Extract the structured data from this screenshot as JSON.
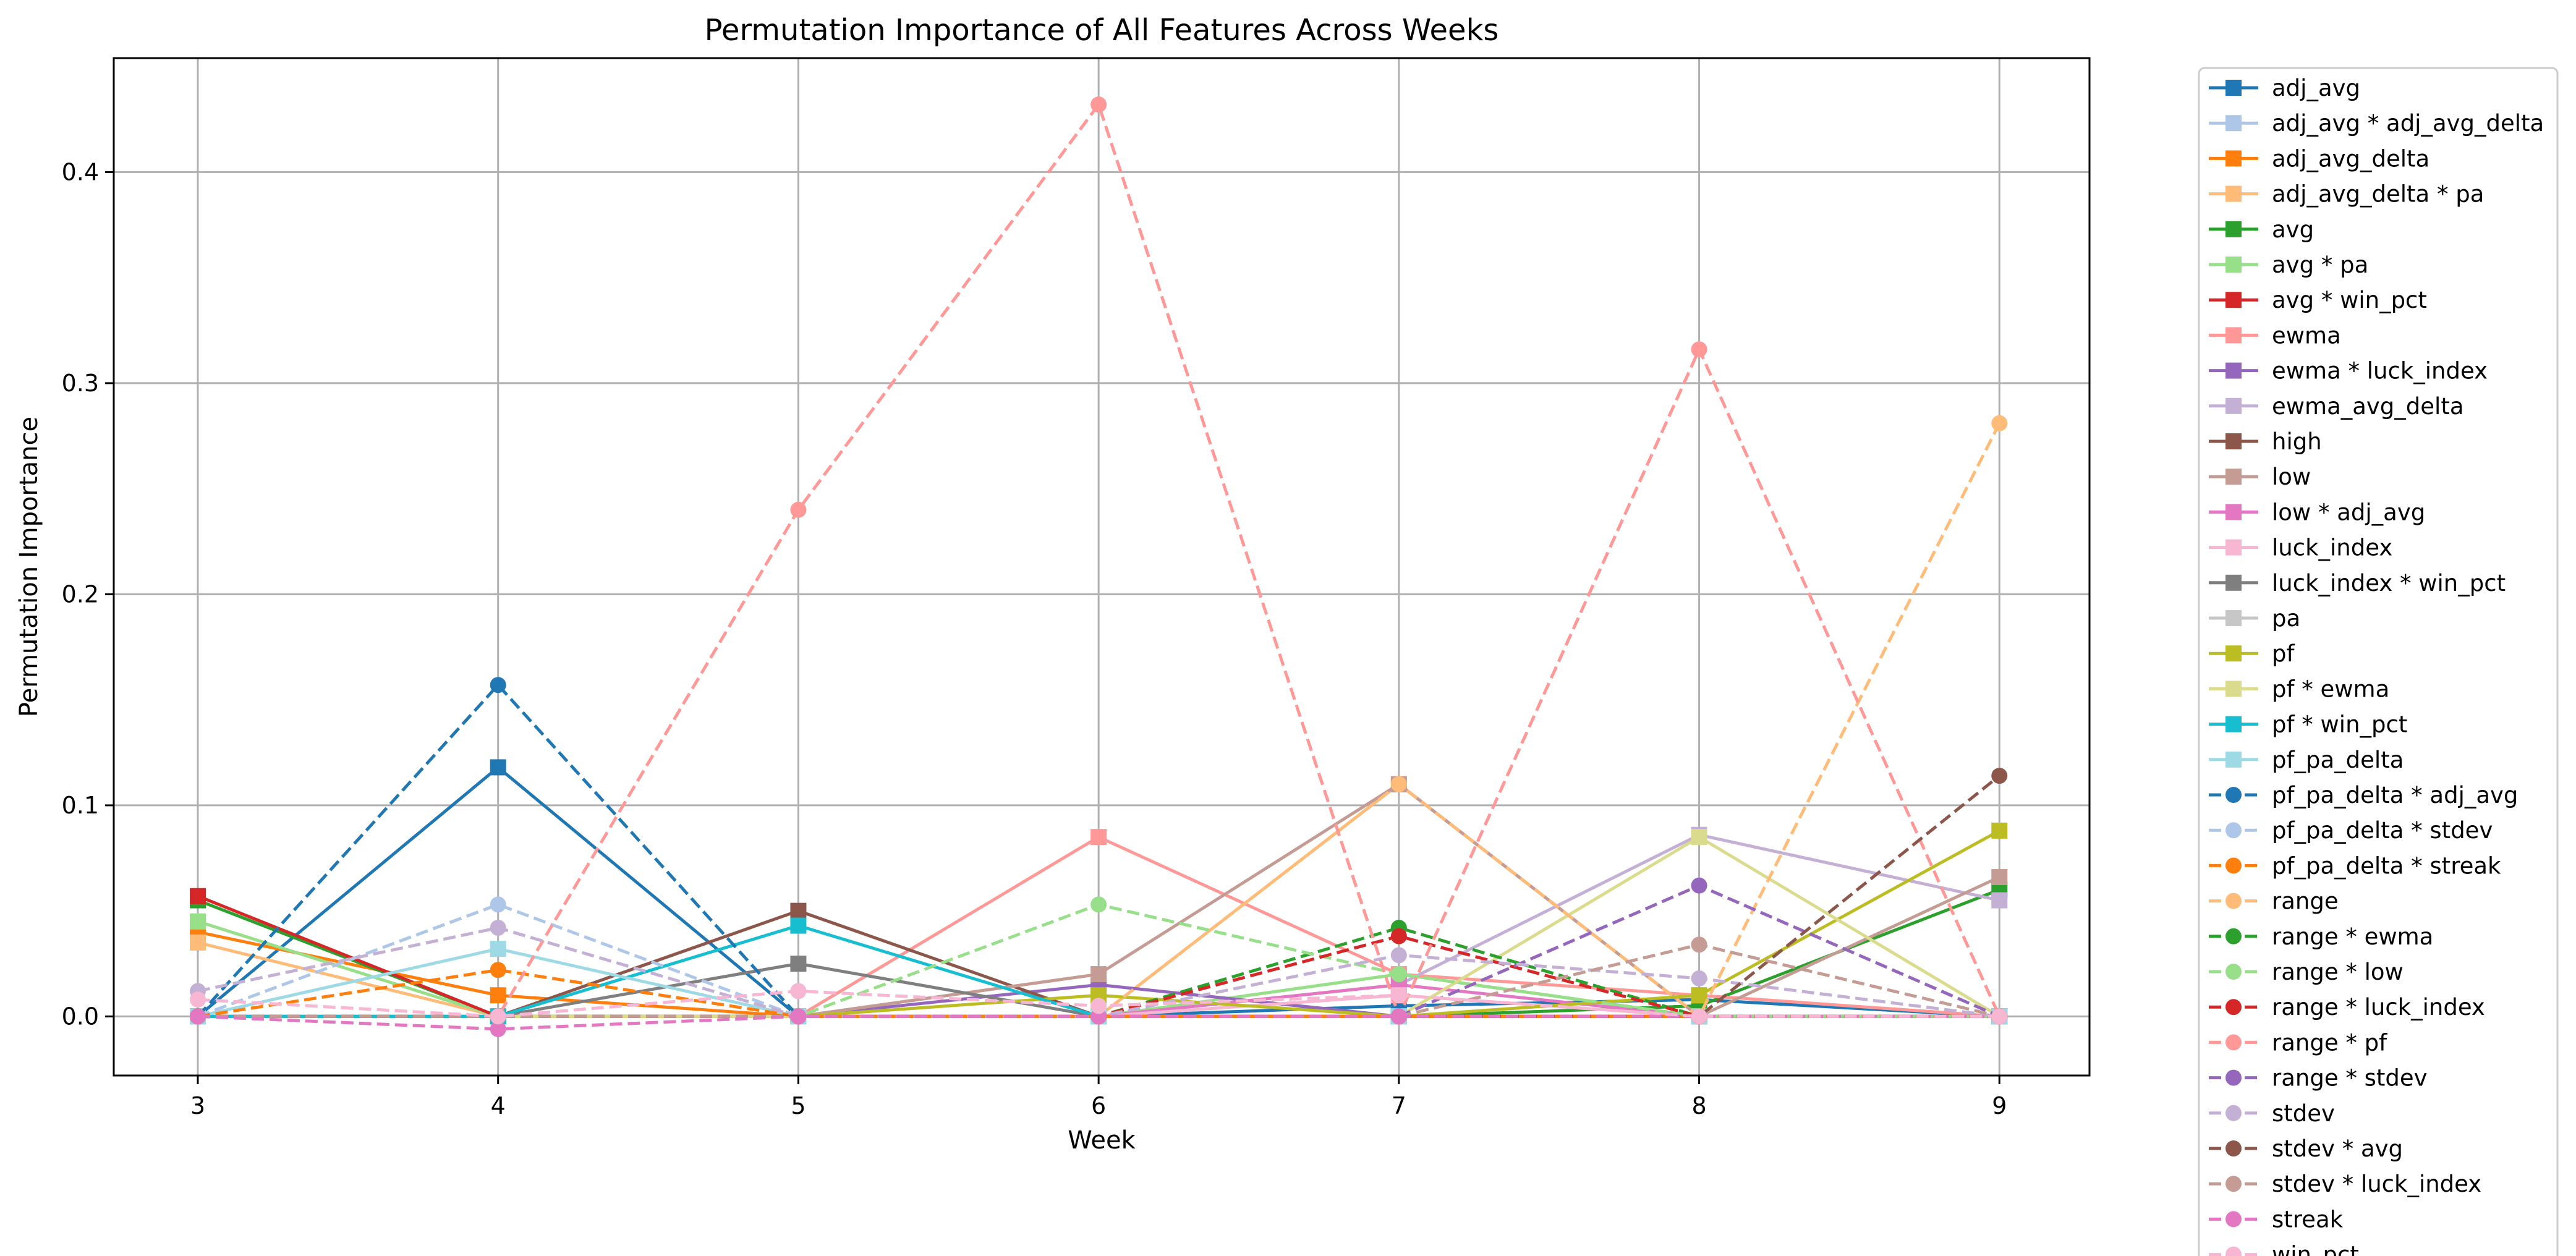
{
  "chart_data": {
    "type": "line",
    "title": "Permutation Importance of All Features Across Weeks",
    "xlabel": "Week",
    "ylabel": "Permutation Importance",
    "x": [
      3,
      4,
      5,
      6,
      7,
      8,
      9
    ],
    "xlim": [
      2.72,
      9.3
    ],
    "ylim": [
      -0.028,
      0.454
    ],
    "x_ticks": [
      3,
      4,
      5,
      6,
      7,
      8,
      9
    ],
    "y_ticks": [
      0.0,
      0.1,
      0.2,
      0.3,
      0.4
    ],
    "y_tick_labels": [
      "0.0",
      "0.1",
      "0.2",
      "0.3",
      "0.4"
    ],
    "grid": true,
    "legend_position": "outside-right",
    "series": [
      {
        "name": "adj_avg",
        "color": "#1f77b4",
        "marker": "square",
        "dashed": false,
        "values": [
          0.0,
          0.118,
          0.0,
          0.0,
          0.005,
          0.008,
          0.0
        ]
      },
      {
        "name": "adj_avg * adj_avg_delta",
        "color": "#aec7e8",
        "marker": "square",
        "dashed": false,
        "values": [
          0.0,
          0.0,
          0.0,
          0.0,
          0.0,
          0.0,
          0.0
        ]
      },
      {
        "name": "adj_avg_delta",
        "color": "#ff7f0e",
        "marker": "square",
        "dashed": false,
        "values": [
          0.04,
          0.01,
          0.0,
          0.0,
          0.0,
          0.0,
          0.0
        ]
      },
      {
        "name": "adj_avg_delta * pa",
        "color": "#ffbb78",
        "marker": "square",
        "dashed": false,
        "values": [
          0.035,
          0.0,
          0.0,
          0.0,
          0.11,
          0.0,
          0.0
        ]
      },
      {
        "name": "avg",
        "color": "#2ca02c",
        "marker": "square",
        "dashed": false,
        "values": [
          0.055,
          0.0,
          0.0,
          0.0,
          0.0,
          0.005,
          0.06
        ]
      },
      {
        "name": "avg * pa",
        "color": "#98df8a",
        "marker": "square",
        "dashed": false,
        "values": [
          0.045,
          0.0,
          0.0,
          0.0,
          0.02,
          0.0,
          0.0
        ]
      },
      {
        "name": "avg * win_pct",
        "color": "#d62728",
        "marker": "square",
        "dashed": false,
        "values": [
          0.057,
          0.0,
          0.0,
          0.0,
          0.0,
          0.0,
          0.0
        ]
      },
      {
        "name": "ewma",
        "color": "#ff9896",
        "marker": "square",
        "dashed": false,
        "values": [
          0.0,
          0.0,
          0.0,
          0.085,
          0.02,
          0.01,
          0.0
        ]
      },
      {
        "name": "ewma * luck_index",
        "color": "#9467bd",
        "marker": "square",
        "dashed": false,
        "values": [
          0.0,
          0.0,
          0.0,
          0.015,
          0.0,
          0.0,
          0.0
        ]
      },
      {
        "name": "ewma_avg_delta",
        "color": "#c5b0d5",
        "marker": "square",
        "dashed": false,
        "values": [
          0.0,
          0.0,
          0.0,
          0.0,
          0.015,
          0.086,
          0.055
        ]
      },
      {
        "name": "high",
        "color": "#8c564b",
        "marker": "square",
        "dashed": false,
        "values": [
          0.0,
          0.0,
          0.05,
          0.0,
          0.0,
          0.0,
          0.0
        ]
      },
      {
        "name": "low",
        "color": "#c49c94",
        "marker": "square",
        "dashed": false,
        "values": [
          0.0,
          0.0,
          0.0,
          0.02,
          0.11,
          0.0,
          0.066
        ]
      },
      {
        "name": "low * adj_avg",
        "color": "#e377c2",
        "marker": "square",
        "dashed": false,
        "values": [
          0.0,
          0.0,
          0.0,
          0.0,
          0.015,
          0.0,
          0.0
        ]
      },
      {
        "name": "luck_index",
        "color": "#f7b6d2",
        "marker": "square",
        "dashed": false,
        "values": [
          0.0,
          0.0,
          0.0,
          0.0,
          0.01,
          0.0,
          0.0
        ]
      },
      {
        "name": "luck_index * win_pct",
        "color": "#7f7f7f",
        "marker": "square",
        "dashed": false,
        "values": [
          0.0,
          0.0,
          0.025,
          0.0,
          0.0,
          0.0,
          0.0
        ]
      },
      {
        "name": "pa",
        "color": "#c7c7c7",
        "marker": "square",
        "dashed": false,
        "values": [
          0.0,
          0.0,
          0.0,
          0.0,
          0.0,
          0.0,
          0.0
        ]
      },
      {
        "name": "pf",
        "color": "#bcbd22",
        "marker": "square",
        "dashed": false,
        "values": [
          0.0,
          0.0,
          0.0,
          0.01,
          0.0,
          0.01,
          0.088
        ]
      },
      {
        "name": "pf * ewma",
        "color": "#dbdb8d",
        "marker": "square",
        "dashed": false,
        "values": [
          0.0,
          0.0,
          0.0,
          0.0,
          0.0,
          0.085,
          0.0
        ]
      },
      {
        "name": "pf * win_pct",
        "color": "#17becf",
        "marker": "square",
        "dashed": false,
        "values": [
          0.0,
          0.0,
          0.043,
          0.0,
          0.0,
          0.0,
          0.0
        ]
      },
      {
        "name": "pf_pa_delta",
        "color": "#9edae5",
        "marker": "square",
        "dashed": false,
        "values": [
          0.0,
          0.032,
          0.0,
          0.0,
          0.0,
          0.0,
          0.0
        ]
      },
      {
        "name": "pf_pa_delta * adj_avg",
        "color": "#1f77b4",
        "marker": "circle",
        "dashed": true,
        "values": [
          0.0,
          0.157,
          0.0,
          0.0,
          0.0,
          0.0,
          0.0
        ]
      },
      {
        "name": "pf_pa_delta * stdev",
        "color": "#aec7e8",
        "marker": "circle",
        "dashed": true,
        "values": [
          0.0,
          0.053,
          0.0,
          0.0,
          0.0,
          0.0,
          0.0
        ]
      },
      {
        "name": "pf_pa_delta * streak",
        "color": "#ff7f0e",
        "marker": "circle",
        "dashed": true,
        "values": [
          0.0,
          0.022,
          0.0,
          0.0,
          0.0,
          0.0,
          0.0
        ]
      },
      {
        "name": "range",
        "color": "#ffbb78",
        "marker": "circle",
        "dashed": true,
        "values": [
          0.0,
          0.0,
          0.0,
          0.0,
          0.11,
          0.0,
          0.281
        ]
      },
      {
        "name": "range * ewma",
        "color": "#2ca02c",
        "marker": "circle",
        "dashed": true,
        "values": [
          0.0,
          0.0,
          0.0,
          0.0,
          0.042,
          0.0,
          0.0
        ]
      },
      {
        "name": "range * low",
        "color": "#98df8a",
        "marker": "circle",
        "dashed": true,
        "values": [
          0.0,
          0.0,
          0.0,
          0.053,
          0.02,
          0.0,
          0.0
        ]
      },
      {
        "name": "range * luck_index",
        "color": "#d62728",
        "marker": "circle",
        "dashed": true,
        "values": [
          0.0,
          0.0,
          0.0,
          0.0,
          0.038,
          0.0,
          0.0
        ]
      },
      {
        "name": "range * pf",
        "color": "#ff9896",
        "marker": "circle",
        "dashed": true,
        "values": [
          0.0,
          0.0,
          0.24,
          0.432,
          0.0,
          0.316,
          0.0
        ]
      },
      {
        "name": "range * stdev",
        "color": "#9467bd",
        "marker": "circle",
        "dashed": true,
        "values": [
          0.0,
          0.0,
          0.0,
          0.0,
          0.0,
          0.062,
          0.0
        ]
      },
      {
        "name": "stdev",
        "color": "#c5b0d5",
        "marker": "circle",
        "dashed": true,
        "values": [
          0.012,
          0.042,
          0.0,
          0.0,
          0.029,
          0.018,
          0.0
        ]
      },
      {
        "name": "stdev * avg",
        "color": "#8c564b",
        "marker": "circle",
        "dashed": true,
        "values": [
          0.0,
          0.0,
          0.0,
          0.0,
          0.0,
          0.0,
          0.114
        ]
      },
      {
        "name": "stdev * luck_index",
        "color": "#c49c94",
        "marker": "circle",
        "dashed": true,
        "values": [
          0.0,
          0.0,
          0.0,
          0.0,
          0.0,
          0.034,
          0.0
        ]
      },
      {
        "name": "streak",
        "color": "#e377c2",
        "marker": "circle",
        "dashed": true,
        "values": [
          0.0,
          -0.006,
          0.0,
          0.0,
          0.0,
          0.0,
          0.0
        ]
      },
      {
        "name": "win_pct",
        "color": "#f7b6d2",
        "marker": "circle",
        "dashed": true,
        "values": [
          0.008,
          0.0,
          0.012,
          0.005,
          0.01,
          0.0,
          0.0
        ]
      }
    ]
  }
}
